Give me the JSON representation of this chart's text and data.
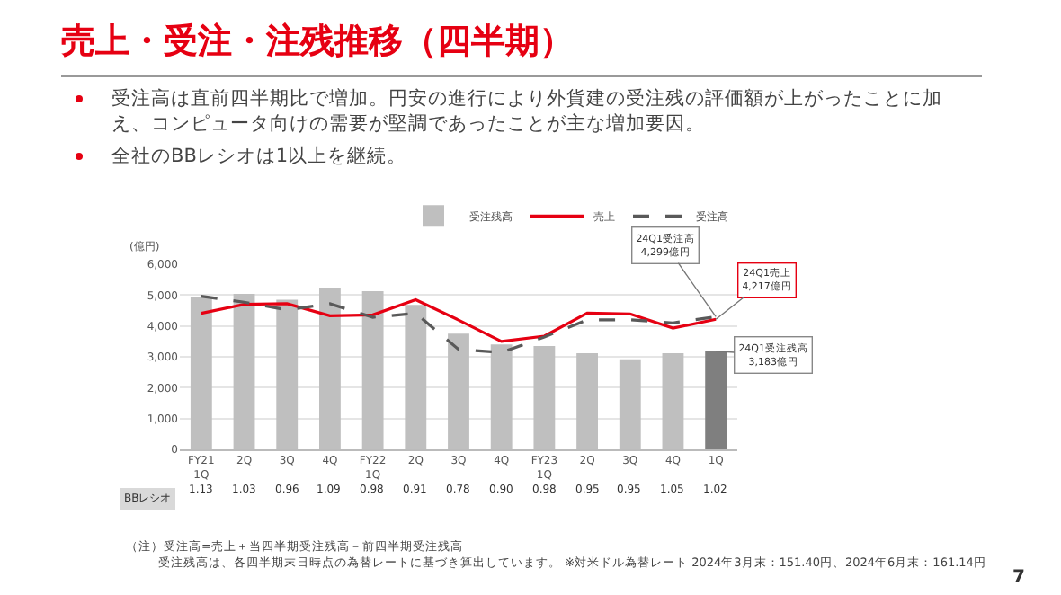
{
  "chart_data": {
    "type": "bar",
    "title": "売上・受注・注残推移（四半期）",
    "subtitle": "受注高は直前四半期比で増加。円安の進行により外貨建の受注残の評価額が上がったことに加え、コンピュータ向けの需要が堅調であったことが主な増加要因。",
    "ylabel": "(億円)",
    "categories": [
      "FY21\n1Q",
      "2Q",
      "3Q",
      "4Q",
      "FY22\n1Q",
      "2Q",
      "3Q",
      "4Q",
      "FY23\n1Q",
      "2Q",
      "3Q",
      "4Q",
      "1Q"
    ],
    "series": [
      {
        "name": "受注残高",
        "colors": [
          "#bfbfbf",
          "#bfbfbf",
          "#bfbfbf",
          "#bfbfbf",
          "#bfbfbf",
          "#bfbfbf",
          "#bfbfbf",
          "#bfbfbf",
          "#bfbfbf",
          "#bfbfbf",
          "#bfbfbf",
          "#bfbfbf",
          "#7f7f7f"
        ],
        "values": [
          4920,
          5040,
          4850,
          5240,
          5130,
          4680,
          3750,
          3400,
          3350,
          3120,
          2920,
          3120,
          3183
        ]
      },
      {
        "name": "売上",
        "type": "line",
        "color": "#e60012",
        "line_style": "solid",
        "values": [
          4410,
          4700,
          4720,
          4330,
          4360,
          4850,
          4190,
          3500,
          3670,
          4420,
          4390,
          3930,
          4217
        ]
      },
      {
        "name": "受注高",
        "type": "line",
        "color": "#595959",
        "line_style": "dashed",
        "values": [
          4960,
          4770,
          4520,
          4720,
          4280,
          4410,
          3240,
          3140,
          3640,
          4200,
          4200,
          4100,
          4299
        ]
      }
    ],
    "ylim": [
      0,
      6000
    ],
    "yticks": [
      {
        "value": 0,
        "label": "0"
      },
      {
        "value": 1000,
        "label": "1,000"
      },
      {
        "value": 2000,
        "label": "2,000"
      },
      {
        "value": 3000,
        "label": "3,000"
      },
      {
        "value": 4000,
        "label": "4,000"
      },
      {
        "value": 5000,
        "label": "5,000"
      },
      {
        "value": 6000,
        "label": "6,000"
      }
    ],
    "grid": "y",
    "legend": "top right",
    "marker": "none",
    "annotations": [
      "全社のBBレシオは1以上を継続。",
      "BBレシオ",
      "1.13",
      "1.03",
      "0.96",
      "1.09",
      "0.98",
      "0.91",
      "0.78",
      "0.90",
      "0.98",
      "0.95",
      "0.95",
      "1.05",
      "1.02",
      {
        "text": "24Q1受注高\n4,299億円",
        "x": "1Q",
        "y": 4299
      },
      {
        "text": "24Q1売上\n4,217億円",
        "x": "1Q",
        "y": 4217
      },
      {
        "text": "24Q1受注残高\n3,183億円",
        "x": "1Q",
        "y": 3183
      },
      "（注）受注高=売上＋当四半期受注残高－前四半期受注残高",
      "受注残高は、各四半期末日時点の為替レートに基づき算出しています。 ※対米ドル為替レート 2024年3月末：151.40円、2024年6月末：161.14円",
      "7"
    ]
  }
}
